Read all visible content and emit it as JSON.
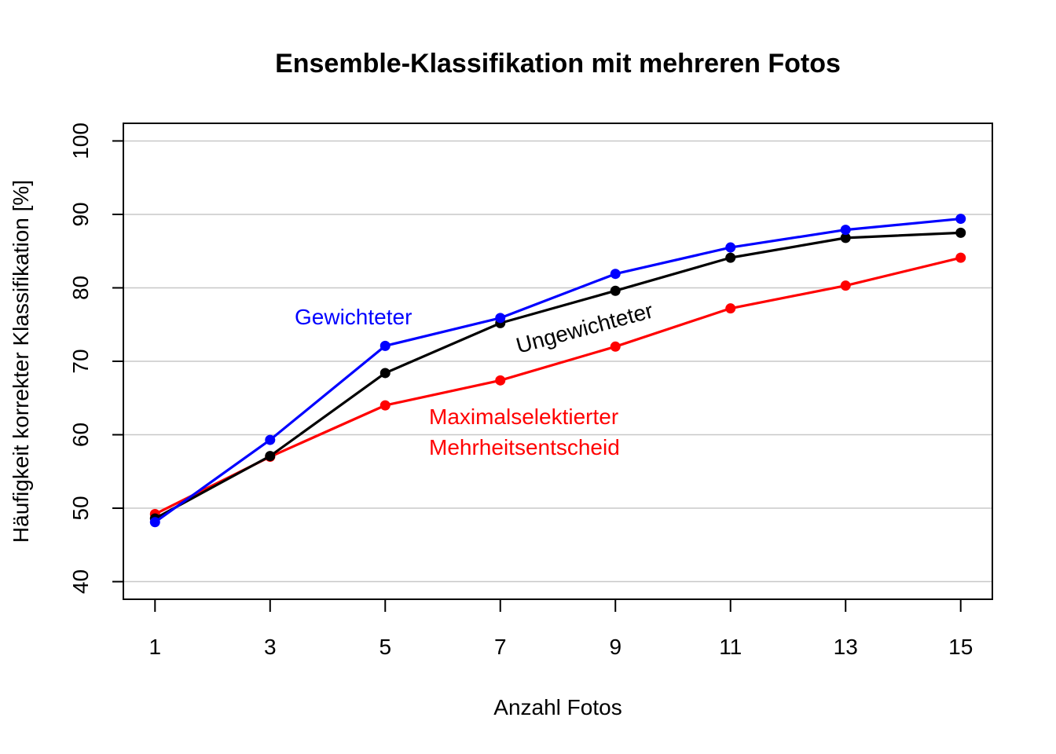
{
  "chart_data": {
    "type": "line",
    "title": "Ensemble-Klassifikation mit mehreren Fotos",
    "xlabel": "Anzahl Fotos",
    "ylabel": "Häufigkeit korrekter Klassifikation [%]",
    "x": [
      1,
      3,
      5,
      7,
      9,
      11,
      13,
      15
    ],
    "xticks": [
      "1",
      "3",
      "5",
      "7",
      "9",
      "11",
      "13",
      "15"
    ],
    "yticks": [
      "40",
      "50",
      "60",
      "70",
      "80",
      "90",
      "100"
    ],
    "xlim": [
      0.45,
      15.55
    ],
    "ylim": [
      37.6,
      102.4
    ],
    "grid": "horizontal",
    "legend": "none",
    "series": [
      {
        "name": "Gewichteter",
        "color": "#0000ff",
        "values": [
          48.1,
          59.3,
          72.1,
          75.9,
          81.9,
          85.5,
          87.9,
          89.4
        ]
      },
      {
        "name": "Ungewichteter",
        "color": "#000000",
        "values": [
          48.6,
          57.1,
          68.4,
          75.2,
          79.6,
          84.1,
          86.8,
          87.5
        ]
      },
      {
        "name": "Maximalselektierter Mehrheitsentscheid",
        "color": "#ff0000",
        "values": [
          49.2,
          57.0,
          64.0,
          67.4,
          72.0,
          77.2,
          80.3,
          84.1
        ]
      }
    ],
    "annotations": {
      "gewichteter": "Gewichteter",
      "ungewichteter": "Ungewichteter",
      "maximal_line1": "Maximalselektierter",
      "maximal_line2": "Mehrheitsentscheid"
    }
  }
}
